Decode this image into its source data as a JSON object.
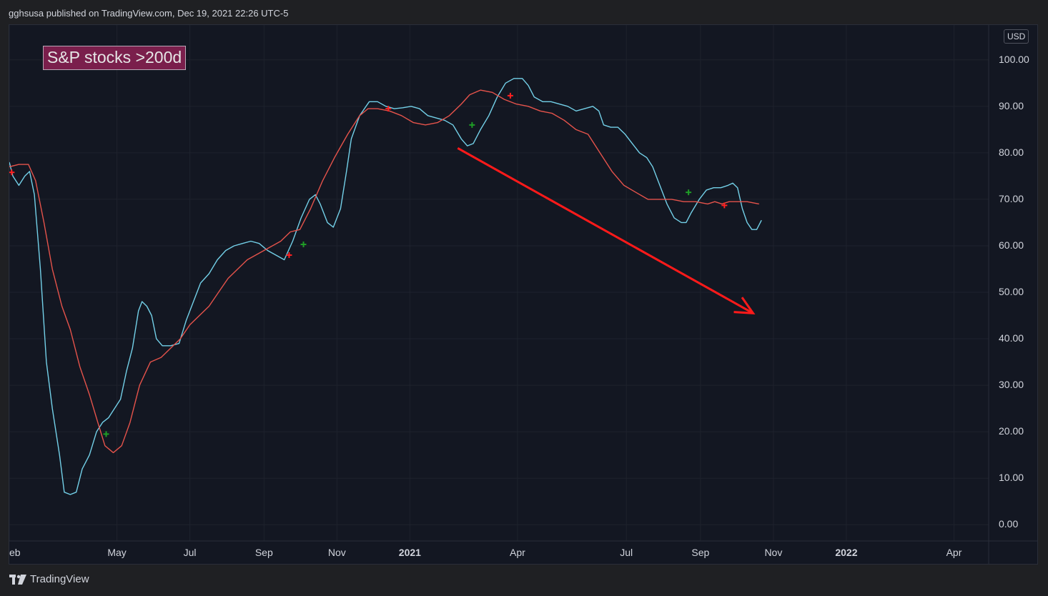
{
  "header": {
    "text": "gghsusa published on TradingView.com, Dec 19, 2021 22:26 UTC-5"
  },
  "footer": {
    "brand": "TradingView",
    "logo_icon": "tradingview-logo-icon"
  },
  "chart": {
    "currency_label": "USD"
  },
  "colors": {
    "background": "#131722",
    "grid": "#1e222d",
    "breadth_line": "#73d0e8",
    "average_line": "#e5534b",
    "cross_up": "#1f9d26",
    "cross_down": "#ff2020",
    "arrow": "#ff1a1a",
    "title_bg": "#7a1f4c"
  },
  "chart_data": {
    "type": "line",
    "title": "S&P stocks >200d",
    "xlabel": "",
    "ylabel": "",
    "x_axis_type": "date",
    "xlim": [
      "2020-02-01",
      "2022-04-30"
    ],
    "ylim": [
      -3.5,
      107.5
    ],
    "y_ticks": [
      "100.00",
      "90.00",
      "80.00",
      "70.00",
      "60.00",
      "50.00",
      "40.00",
      "30.00",
      "20.00",
      "10.00",
      "0.00"
    ],
    "x_ticks": [
      {
        "date": "2020-02-01",
        "label": "eb",
        "bold": false
      },
      {
        "date": "2020-05-01",
        "label": "May",
        "bold": false
      },
      {
        "date": "2020-07-01",
        "label": "Jul",
        "bold": false
      },
      {
        "date": "2020-09-01",
        "label": "Sep",
        "bold": false
      },
      {
        "date": "2020-11-01",
        "label": "Nov",
        "bold": false
      },
      {
        "date": "2021-01-01",
        "label": "2021",
        "bold": true
      },
      {
        "date": "2021-04-01",
        "label": "Apr",
        "bold": false
      },
      {
        "date": "2021-07-01",
        "label": "Jul",
        "bold": false
      },
      {
        "date": "2021-09-01",
        "label": "Sep",
        "bold": false
      },
      {
        "date": "2021-11-01",
        "label": "Nov",
        "bold": false
      },
      {
        "date": "2022-01-01",
        "label": "2022",
        "bold": true
      },
      {
        "date": "2022-04-01",
        "label": "Apr",
        "bold": false
      }
    ],
    "grid": true,
    "legend": "none",
    "series": [
      {
        "color": "#73d0e8",
        "points": [
          [
            "2020-02-01",
            78
          ],
          [
            "2020-02-04",
            75
          ],
          [
            "2020-02-09",
            73
          ],
          [
            "2020-02-14",
            75
          ],
          [
            "2020-02-18",
            76
          ],
          [
            "2020-02-22",
            71
          ],
          [
            "2020-02-27",
            55
          ],
          [
            "2020-03-03",
            35
          ],
          [
            "2020-03-08",
            25
          ],
          [
            "2020-03-14",
            15
          ],
          [
            "2020-03-18",
            7
          ],
          [
            "2020-03-23",
            6.5
          ],
          [
            "2020-03-28",
            7
          ],
          [
            "2020-04-02",
            12
          ],
          [
            "2020-04-08",
            15
          ],
          [
            "2020-04-14",
            20
          ],
          [
            "2020-04-19",
            22
          ],
          [
            "2020-04-24",
            23
          ],
          [
            "2020-04-29",
            25
          ],
          [
            "2020-05-04",
            27
          ],
          [
            "2020-05-09",
            33
          ],
          [
            "2020-05-14",
            38
          ],
          [
            "2020-05-19",
            46
          ],
          [
            "2020-05-22",
            48
          ],
          [
            "2020-05-26",
            47
          ],
          [
            "2020-05-30",
            45
          ],
          [
            "2020-06-03",
            40
          ],
          [
            "2020-06-08",
            38.5
          ],
          [
            "2020-06-15",
            38.5
          ],
          [
            "2020-06-22",
            39
          ],
          [
            "2020-06-28",
            44
          ],
          [
            "2020-07-04",
            48
          ],
          [
            "2020-07-10",
            52
          ],
          [
            "2020-07-17",
            54
          ],
          [
            "2020-07-24",
            57
          ],
          [
            "2020-07-31",
            59
          ],
          [
            "2020-08-07",
            60
          ],
          [
            "2020-08-14",
            60.5
          ],
          [
            "2020-08-21",
            61
          ],
          [
            "2020-08-28",
            60.5
          ],
          [
            "2020-09-04",
            59
          ],
          [
            "2020-09-11",
            58
          ],
          [
            "2020-09-18",
            57
          ],
          [
            "2020-09-25",
            61
          ],
          [
            "2020-10-02",
            66
          ],
          [
            "2020-10-09",
            70
          ],
          [
            "2020-10-14",
            71
          ],
          [
            "2020-10-18",
            69
          ],
          [
            "2020-10-24",
            65
          ],
          [
            "2020-10-29",
            64
          ],
          [
            "2020-11-04",
            68
          ],
          [
            "2020-11-09",
            76
          ],
          [
            "2020-11-13",
            83
          ],
          [
            "2020-11-20",
            88
          ],
          [
            "2020-11-28",
            91
          ],
          [
            "2020-12-05",
            91
          ],
          [
            "2020-12-12",
            90
          ],
          [
            "2020-12-19",
            89.5
          ],
          [
            "2020-12-26",
            89.7
          ],
          [
            "2021-01-02",
            90
          ],
          [
            "2021-01-09",
            89.5
          ],
          [
            "2021-01-16",
            88
          ],
          [
            "2021-01-23",
            87.5
          ],
          [
            "2021-01-30",
            87
          ],
          [
            "2021-02-06",
            86
          ],
          [
            "2021-02-13",
            83
          ],
          [
            "2021-02-18",
            81.5
          ],
          [
            "2021-02-23",
            82
          ],
          [
            "2021-03-01",
            85
          ],
          [
            "2021-03-08",
            88
          ],
          [
            "2021-03-15",
            92
          ],
          [
            "2021-03-22",
            95
          ],
          [
            "2021-03-29",
            96
          ],
          [
            "2021-04-05",
            96
          ],
          [
            "2021-04-10",
            94.5
          ],
          [
            "2021-04-15",
            92
          ],
          [
            "2021-04-22",
            91
          ],
          [
            "2021-04-29",
            91
          ],
          [
            "2021-05-06",
            90.5
          ],
          [
            "2021-05-13",
            90
          ],
          [
            "2021-05-20",
            89
          ],
          [
            "2021-05-27",
            89.5
          ],
          [
            "2021-06-03",
            90
          ],
          [
            "2021-06-08",
            89
          ],
          [
            "2021-06-12",
            86
          ],
          [
            "2021-06-18",
            85.5
          ],
          [
            "2021-06-24",
            85.5
          ],
          [
            "2021-06-30",
            84
          ],
          [
            "2021-07-06",
            82
          ],
          [
            "2021-07-12",
            80
          ],
          [
            "2021-07-18",
            79
          ],
          [
            "2021-07-23",
            77
          ],
          [
            "2021-07-29",
            73
          ],
          [
            "2021-08-04",
            69
          ],
          [
            "2021-08-10",
            66
          ],
          [
            "2021-08-16",
            65
          ],
          [
            "2021-08-20",
            65
          ],
          [
            "2021-08-24",
            67
          ],
          [
            "2021-08-31",
            70
          ],
          [
            "2021-09-06",
            72
          ],
          [
            "2021-09-12",
            72.5
          ],
          [
            "2021-09-18",
            72.5
          ],
          [
            "2021-09-24",
            73
          ],
          [
            "2021-09-28",
            73.5
          ],
          [
            "2021-10-02",
            72.5
          ],
          [
            "2021-10-06",
            68
          ],
          [
            "2021-10-10",
            65
          ],
          [
            "2021-10-14",
            63.5
          ],
          [
            "2021-10-18",
            63.5
          ],
          [
            "2021-10-22",
            65.5
          ]
        ]
      },
      {
        "color": "#e5534b",
        "points": [
          [
            "2020-02-01",
            77
          ],
          [
            "2020-02-09",
            77.5
          ],
          [
            "2020-02-17",
            77.5
          ],
          [
            "2020-02-23",
            74
          ],
          [
            "2020-03-01",
            65
          ],
          [
            "2020-03-08",
            55
          ],
          [
            "2020-03-16",
            47
          ],
          [
            "2020-03-23",
            42
          ],
          [
            "2020-03-31",
            34
          ],
          [
            "2020-04-08",
            28
          ],
          [
            "2020-04-15",
            22
          ],
          [
            "2020-04-21",
            17
          ],
          [
            "2020-04-28",
            15.5
          ],
          [
            "2020-05-05",
            17
          ],
          [
            "2020-05-12",
            22
          ],
          [
            "2020-05-20",
            30
          ],
          [
            "2020-05-29",
            35
          ],
          [
            "2020-06-07",
            36
          ],
          [
            "2020-06-15",
            38
          ],
          [
            "2020-06-23",
            40
          ],
          [
            "2020-07-01",
            43
          ],
          [
            "2020-07-09",
            45
          ],
          [
            "2020-07-17",
            47
          ],
          [
            "2020-07-25",
            50
          ],
          [
            "2020-08-02",
            53
          ],
          [
            "2020-08-10",
            55
          ],
          [
            "2020-08-18",
            57
          ],
          [
            "2020-08-25",
            58
          ],
          [
            "2020-09-01",
            59
          ],
          [
            "2020-09-08",
            60
          ],
          [
            "2020-09-15",
            61
          ],
          [
            "2020-09-23",
            63
          ],
          [
            "2020-10-01",
            63.5
          ],
          [
            "2020-10-10",
            68
          ],
          [
            "2020-10-20",
            74
          ],
          [
            "2020-10-30",
            79
          ],
          [
            "2020-11-10",
            84
          ],
          [
            "2020-11-20",
            88
          ],
          [
            "2020-11-27",
            89.5
          ],
          [
            "2020-12-05",
            89.5
          ],
          [
            "2020-12-15",
            89
          ],
          [
            "2020-12-25",
            88
          ],
          [
            "2021-01-04",
            86.5
          ],
          [
            "2021-01-14",
            86
          ],
          [
            "2021-01-24",
            86.5
          ],
          [
            "2021-02-03",
            88
          ],
          [
            "2021-02-13",
            90.5
          ],
          [
            "2021-02-20",
            92.5
          ],
          [
            "2021-03-01",
            93.5
          ],
          [
            "2021-03-11",
            93
          ],
          [
            "2021-03-21",
            91.5
          ],
          [
            "2021-03-31",
            90.5
          ],
          [
            "2021-04-10",
            90
          ],
          [
            "2021-04-20",
            89
          ],
          [
            "2021-04-30",
            88.5
          ],
          [
            "2021-05-10",
            87
          ],
          [
            "2021-05-20",
            85
          ],
          [
            "2021-05-30",
            84
          ],
          [
            "2021-06-09",
            80
          ],
          [
            "2021-06-19",
            76
          ],
          [
            "2021-06-29",
            73
          ],
          [
            "2021-07-09",
            71.5
          ],
          [
            "2021-07-19",
            70
          ],
          [
            "2021-07-29",
            70
          ],
          [
            "2021-08-08",
            70
          ],
          [
            "2021-08-18",
            69.5
          ],
          [
            "2021-08-28",
            69.5
          ],
          [
            "2021-09-07",
            69
          ],
          [
            "2021-09-13",
            69.5
          ],
          [
            "2021-09-19",
            69
          ],
          [
            "2021-09-25",
            69.5
          ],
          [
            "2021-10-02",
            69.5
          ],
          [
            "2021-10-10",
            69.5
          ],
          [
            "2021-10-20",
            69
          ]
        ]
      }
    ],
    "markers": [
      {
        "date": "2020-02-03",
        "value": 75.8,
        "type": "cross-down"
      },
      {
        "date": "2020-04-22",
        "value": 19.5,
        "type": "cross-up"
      },
      {
        "date": "2020-09-22",
        "value": 58,
        "type": "cross-down"
      },
      {
        "date": "2020-10-04",
        "value": 60.3,
        "type": "cross-up"
      },
      {
        "date": "2020-12-14",
        "value": 89.5,
        "type": "cross-down"
      },
      {
        "date": "2021-02-22",
        "value": 86,
        "type": "cross-up"
      },
      {
        "date": "2021-03-26",
        "value": 92.3,
        "type": "cross-down"
      },
      {
        "date": "2021-08-22",
        "value": 71.5,
        "type": "cross-up"
      },
      {
        "date": "2021-09-21",
        "value": 68.7,
        "type": "cross-down"
      }
    ],
    "annotations": [
      {
        "type": "arrow",
        "from": [
          "2021-02-10",
          81
        ],
        "to": [
          "2021-10-15",
          45.5
        ]
      }
    ]
  }
}
